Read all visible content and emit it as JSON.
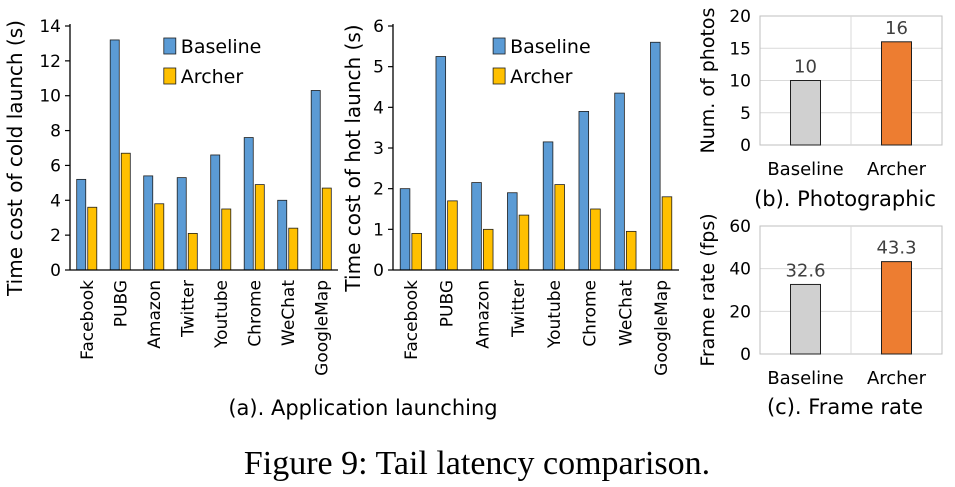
{
  "caption": "Figure 9: Tail latency comparison.",
  "subcaptions": {
    "a": "(a). Application launching",
    "b": "(b). Photographic",
    "c": "(c). Frame rate"
  },
  "colors": {
    "baseline_blue": "#5b9bd5",
    "archer_yellow": "#ffc000",
    "baseline_gray": "#d0d0d0",
    "archer_orange": "#ed7d31",
    "grid": "#d9d9d9",
    "axis": "#000000"
  },
  "chart_data": [
    {
      "id": "cold",
      "type": "bar",
      "ylabel": "Time cost of cold launch (s)",
      "ylim": [
        0,
        14
      ],
      "yticks": [
        0,
        2,
        4,
        6,
        8,
        10,
        12,
        14
      ],
      "grid": false,
      "legend": "top-center",
      "categories": [
        "Facebook",
        "PUBG",
        "Amazon",
        "Twitter",
        "Youtube",
        "Chrome",
        "WeChat",
        "GoogleMap"
      ],
      "series": [
        {
          "name": "Baseline",
          "values": [
            5.2,
            13.2,
            5.4,
            5.3,
            6.6,
            7.6,
            4.0,
            10.3
          ]
        },
        {
          "name": "Archer",
          "values": [
            3.6,
            6.7,
            3.8,
            2.1,
            3.5,
            4.9,
            2.4,
            4.7
          ]
        }
      ]
    },
    {
      "id": "hot",
      "type": "bar",
      "ylabel": "Time cost of hot launch (s)",
      "ylim": [
        0,
        6
      ],
      "yticks": [
        0,
        1,
        2,
        3,
        4,
        5,
        6
      ],
      "grid": false,
      "legend": "top-center",
      "categories": [
        "Facebook",
        "PUBG",
        "Amazon",
        "Twitter",
        "Youtube",
        "Chrome",
        "WeChat",
        "GoogleMap"
      ],
      "series": [
        {
          "name": "Baseline",
          "values": [
            2.0,
            5.25,
            2.15,
            1.9,
            3.15,
            3.9,
            4.35,
            5.6
          ]
        },
        {
          "name": "Archer",
          "values": [
            0.9,
            1.7,
            1.0,
            1.35,
            2.1,
            1.5,
            0.95,
            1.8
          ]
        }
      ]
    },
    {
      "id": "photo",
      "type": "bar",
      "ylabel": "Num. of photos",
      "ylim": [
        0,
        20
      ],
      "yticks": [
        0,
        5,
        10,
        15,
        20
      ],
      "grid": true,
      "categories": [
        "Baseline",
        "Archer"
      ],
      "values": [
        10,
        16
      ],
      "data_labels": [
        "10",
        "16"
      ]
    },
    {
      "id": "fps",
      "type": "bar",
      "ylabel": "Frame rate (fps)",
      "ylim": [
        0,
        60
      ],
      "yticks": [
        0,
        20,
        40,
        60
      ],
      "grid": true,
      "categories": [
        "Baseline",
        "Archer"
      ],
      "values": [
        32.6,
        43.3
      ],
      "data_labels": [
        "32.6",
        "43.3"
      ]
    }
  ]
}
